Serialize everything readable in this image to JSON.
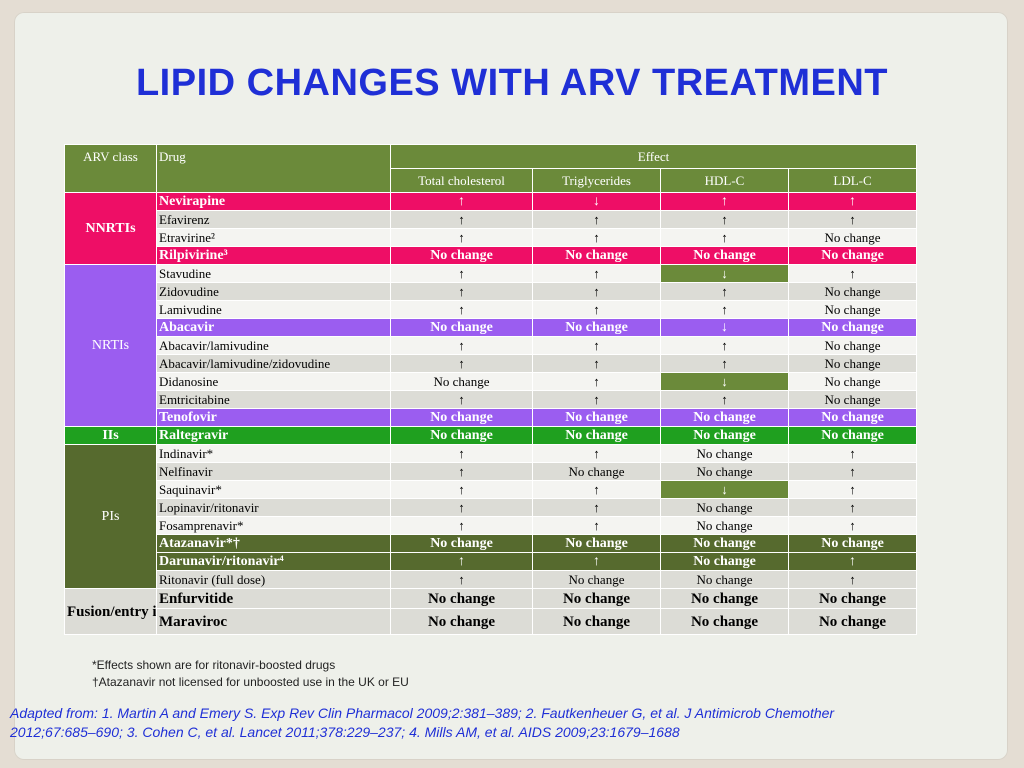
{
  "title": "LIPID CHANGES WITH ARV TREATMENT",
  "table": {
    "header": {
      "arv_class": "ARV class",
      "drug": "Drug",
      "effect": "Effect",
      "total_cholesterol": "Total cholesterol",
      "triglycerides": "Triglycerides",
      "hdl": "HDL-C",
      "ldl": "LDL-C"
    },
    "classes": {
      "nnrti": "NNRTIs",
      "nrti": "NRTIs",
      "ii": "IIs",
      "pi": "PIs",
      "fusion": "Fusion/entry inhibitors"
    },
    "rows": [
      {
        "drug": "Nevirapine",
        "tc": "↑",
        "tg": "↓",
        "hdl": "↑",
        "ldl": "↑"
      },
      {
        "drug": "Efavirenz",
        "tc": "↑",
        "tg": "↑",
        "hdl": "↑",
        "ldl": "↑"
      },
      {
        "drug": "Etravirine²",
        "tc": "↑",
        "tg": "↑",
        "hdl": "↑",
        "ldl": "No change"
      },
      {
        "drug": "Rilpivirine³",
        "tc": "No change",
        "tg": "No change",
        "hdl": "No change",
        "ldl": "No change"
      },
      {
        "drug": "Stavudine",
        "tc": "↑",
        "tg": "↑",
        "hdl": "↓",
        "ldl": "↑"
      },
      {
        "drug": "Zidovudine",
        "tc": "↑",
        "tg": "↑",
        "hdl": "↑",
        "ldl": "No change"
      },
      {
        "drug": "Lamivudine",
        "tc": "↑",
        "tg": "↑",
        "hdl": "↑",
        "ldl": "No change"
      },
      {
        "drug": "Abacavir",
        "tc": "No change",
        "tg": "No change",
        "hdl": "↓",
        "ldl": "No change"
      },
      {
        "drug": "Abacavir/lamivudine",
        "tc": "↑",
        "tg": "↑",
        "hdl": "↑",
        "ldl": "No change"
      },
      {
        "drug": "Abacavir/lamivudine/zidovudine",
        "tc": "↑",
        "tg": "↑",
        "hdl": "↑",
        "ldl": "No change"
      },
      {
        "drug": "Didanosine",
        "tc": "No change",
        "tg": "↑",
        "hdl": "↓",
        "ldl": "No change"
      },
      {
        "drug": "Emtricitabine",
        "tc": "↑",
        "tg": "↑",
        "hdl": "↑",
        "ldl": "No change"
      },
      {
        "drug": "Tenofovir",
        "tc": "No change",
        "tg": "No change",
        "hdl": "No change",
        "ldl": "No change"
      },
      {
        "drug": "Raltegravir",
        "tc": "No change",
        "tg": "No change",
        "hdl": "No change",
        "ldl": "No change"
      },
      {
        "drug": "Indinavir*",
        "tc": "↑",
        "tg": "↑",
        "hdl": "No change",
        "ldl": "↑"
      },
      {
        "drug": "Nelfinavir",
        "tc": "↑",
        "tg": "No change",
        "hdl": "No change",
        "ldl": "↑"
      },
      {
        "drug": "Saquinavir*",
        "tc": "↑",
        "tg": "↑",
        "hdl": "↓",
        "ldl": "↑"
      },
      {
        "drug": "Lopinavir/ritonavir",
        "tc": "↑",
        "tg": "↑",
        "hdl": "No change",
        "ldl": "↑"
      },
      {
        "drug": "Fosamprenavir*",
        "tc": "↑",
        "tg": "↑",
        "hdl": "No change",
        "ldl": "↑"
      },
      {
        "drug": "Atazanavir*†",
        "tc": "No change",
        "tg": "No change",
        "hdl": "No change",
        "ldl": "No change"
      },
      {
        "drug": "Darunavir/ritonavir⁴",
        "tc": "↑",
        "tg": "↑",
        "hdl": "No change",
        "ldl": "↑"
      },
      {
        "drug": "Ritonavir (full dose)",
        "tc": "↑",
        "tg": "No change",
        "hdl": "No change",
        "ldl": "↑"
      },
      {
        "drug": "Enfurvitide",
        "tc": "No change",
        "tg": "No change",
        "hdl": "No change",
        "ldl": "No change"
      },
      {
        "drug": "Maraviroc",
        "tc": "No change",
        "tg": "No change",
        "hdl": "No change",
        "ldl": "No change"
      }
    ]
  },
  "notes": {
    "note1": "*Effects shown are for ritonavir-boosted drugs",
    "note2": "†Atazanavir not licensed for unboosted use in the UK or EU"
  },
  "reference": "Adapted from: 1. Martin A and Emery S. Exp Rev Clin Pharmacol 2009;2:381–389; 2. Fautkenheuer G, et al. J Antimicrob Chemother 2012;67:685–690; 3. Cohen C, et al. Lancet 2011;378:229–237; 4. Mills AM, et al. AIDS 2009;23:1679–1688",
  "colors": {
    "title": "#1f2fd6",
    "header": "#6b8a3a",
    "nnrti": "#ee0e66",
    "nrti": "#9b5df0",
    "ii": "#1fa01f",
    "pi": "#566a2e"
  }
}
